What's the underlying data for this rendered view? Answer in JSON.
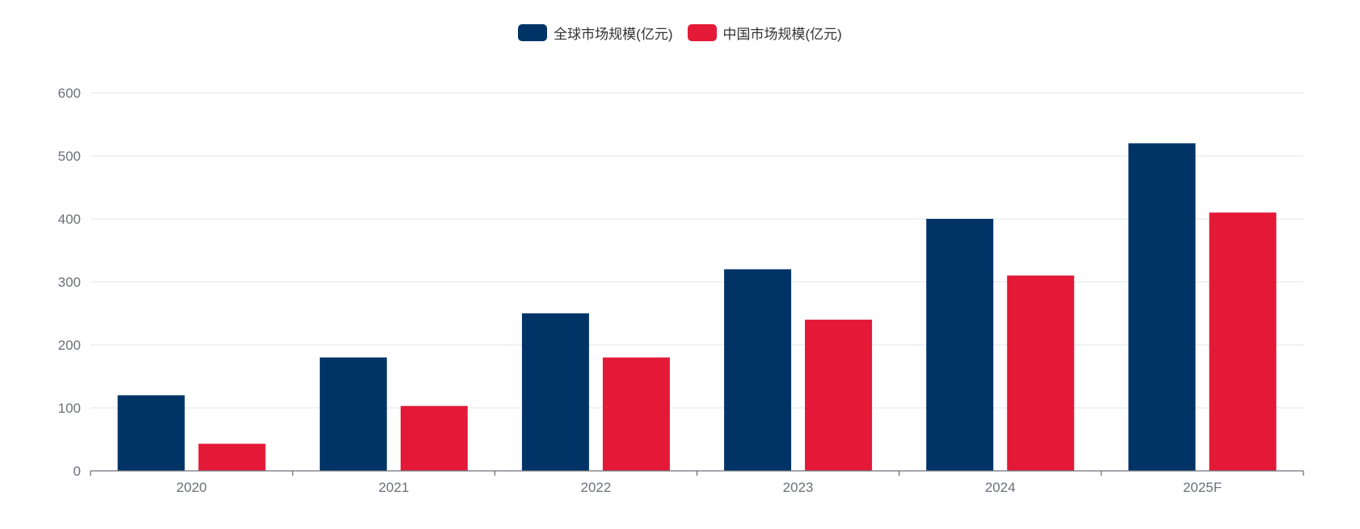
{
  "chart_data": {
    "type": "bar",
    "categories": [
      "2020",
      "2021",
      "2022",
      "2023",
      "2024",
      "2025F"
    ],
    "series": [
      {
        "name": "全球市场规模(亿元)",
        "color": "#003366",
        "values": [
          120,
          180,
          250,
          320,
          400,
          520
        ]
      },
      {
        "name": "中国市场规模(亿元)",
        "color": "#E31937",
        "values": [
          43,
          103,
          180,
          240,
          310,
          410
        ]
      }
    ],
    "ylim": [
      0,
      600
    ],
    "yticks": [
      0,
      100,
      200,
      300,
      400,
      500,
      600
    ],
    "grid": true,
    "legend_position": "top-center"
  }
}
